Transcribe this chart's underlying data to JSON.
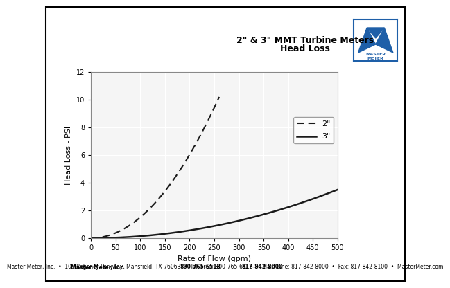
{
  "title_line1": "2\" & 3\" MMT Turbine Meters",
  "title_line2": "Head Loss",
  "xlabel": "Rate of Flow (gpm)",
  "ylabel": "Head Loss - PSI",
  "xlim": [
    0,
    500
  ],
  "ylim": [
    0,
    12
  ],
  "xticks": [
    0,
    50,
    100,
    150,
    200,
    250,
    300,
    350,
    400,
    450,
    500
  ],
  "yticks": [
    0,
    2,
    4,
    6,
    8,
    10,
    12
  ],
  "line2_label": "2\"",
  "line3_label": "3\"",
  "footer_text": "Master Meter, Inc.  •  101 Regency Parkway, Mansfield, TX 76063  •  Toll Free: 800-765-6518  •  Main Line: 817-842-8000  •  Fax: 817-842-8100  •  MasterMeter.com",
  "bg_color": "#ffffff",
  "plot_bg_color": "#f5f5f5",
  "grid_color": "#ffffff",
  "line_color": "#1a1a1a",
  "logo_blue": "#1e5fa8"
}
